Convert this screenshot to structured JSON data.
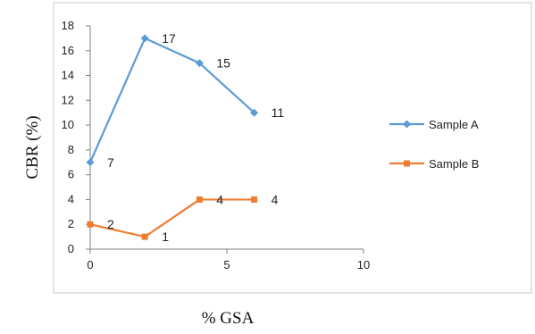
{
  "chart_data": {
    "type": "line",
    "title": "",
    "xlabel": "% GSA",
    "ylabel": "CBR (%)",
    "xlim": [
      0,
      10
    ],
    "ylim": [
      0,
      18
    ],
    "x_ticks": [
      0,
      5,
      10
    ],
    "y_ticks": [
      0,
      2,
      4,
      6,
      8,
      10,
      12,
      14,
      16,
      18
    ],
    "grid": false,
    "legend_position": "right",
    "series": [
      {
        "name": "Sample A",
        "color": "#5b9bd5",
        "marker": "diamond",
        "x": [
          0,
          2,
          4,
          6
        ],
        "y": [
          7,
          17,
          15,
          11
        ],
        "labels": [
          "7",
          "17",
          "15",
          "11"
        ]
      },
      {
        "name": "Sample B",
        "color": "#ed7d31",
        "marker": "square",
        "x": [
          0,
          2,
          4,
          6
        ],
        "y": [
          2,
          1,
          4,
          4
        ],
        "labels": [
          "2",
          "1",
          "4",
          "4"
        ]
      }
    ]
  }
}
